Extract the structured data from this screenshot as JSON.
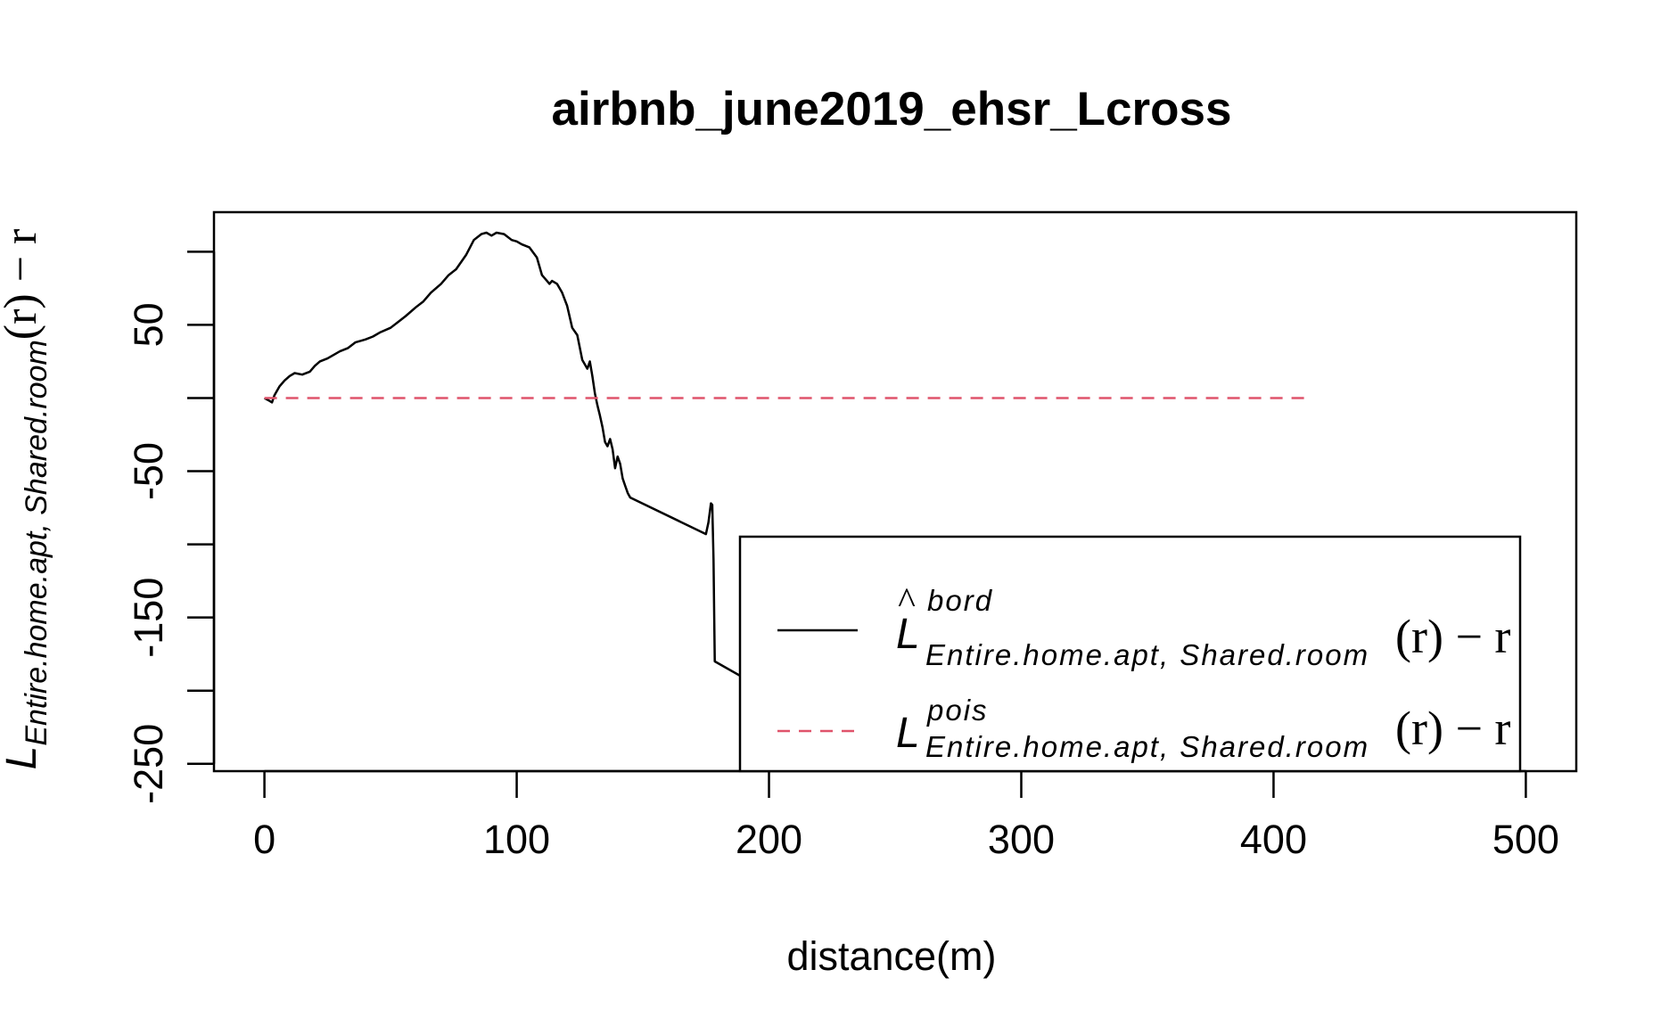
{
  "chart_data": {
    "type": "line",
    "title": "airbnb_june2019_ehsr_Lcross",
    "xlabel": "distance(m)",
    "ylabel": {
      "base": "L",
      "subscript": "Entire.home.apt, Shared.room",
      "suffix": "(r) − r"
    },
    "xlim": [
      -20,
      520
    ],
    "ylim": [
      -255,
      127
    ],
    "x_ticks": [
      0,
      100,
      200,
      300,
      400,
      500
    ],
    "y_ticks": [
      100,
      50,
      0,
      -50,
      -100,
      -150,
      -200,
      -250
    ],
    "y_tick_labels": [
      "50",
      "-50",
      "-150",
      "-250"
    ],
    "y_tick_label_values": [
      50,
      -50,
      -150,
      -250
    ],
    "grid": false,
    "legend_position": "bottom-right",
    "series": [
      {
        "legend": {
          "base": "L",
          "hat": "^",
          "superscript": "bord",
          "subscript": "Entire.home.apt, Shared.room",
          "suffix": "(r) − r"
        },
        "color": "#000000",
        "dash": "solid",
        "x": [
          0,
          2,
          3,
          4,
          6,
          8,
          10,
          12,
          15,
          18,
          20,
          22,
          25,
          28,
          30,
          33,
          36,
          40,
          43,
          46,
          50,
          53,
          56,
          60,
          63,
          66,
          70,
          73,
          76,
          80,
          83,
          86,
          88,
          90,
          92,
          95,
          98,
          100,
          102,
          105,
          108,
          110,
          112,
          113,
          114,
          116,
          118,
          120,
          122,
          124,
          126,
          128,
          129,
          130,
          131,
          132,
          133,
          134,
          135,
          136,
          137,
          138,
          139,
          140,
          141,
          142,
          143,
          144,
          145,
          175,
          176,
          177,
          177.5,
          178,
          178.5,
          242
        ],
        "y": [
          0,
          -2,
          -3,
          2,
          8,
          12,
          15,
          17,
          16,
          18,
          22,
          25,
          27,
          30,
          32,
          34,
          38,
          40,
          42,
          45,
          48,
          52,
          56,
          62,
          66,
          72,
          78,
          84,
          88,
          98,
          108,
          112,
          113,
          111,
          113,
          112,
          108,
          107,
          105,
          103,
          96,
          84,
          80,
          78,
          80,
          78,
          72,
          63,
          48,
          43,
          26,
          20,
          25,
          15,
          3,
          -5,
          -12,
          -20,
          -30,
          -33,
          -28,
          -35,
          -48,
          -40,
          -45,
          -55,
          -60,
          -65,
          -68,
          -93,
          -85,
          -72,
          -73,
          -110,
          -180,
          -242
        ]
      },
      {
        "legend": {
          "base": "L",
          "superscript": "pois",
          "subscript": "Entire.home.apt, Shared.room",
          "suffix": "(r) − r"
        },
        "color": "#df536b",
        "dash": "dashed",
        "x": [
          0,
          415
        ],
        "y": [
          0,
          0
        ]
      }
    ]
  }
}
